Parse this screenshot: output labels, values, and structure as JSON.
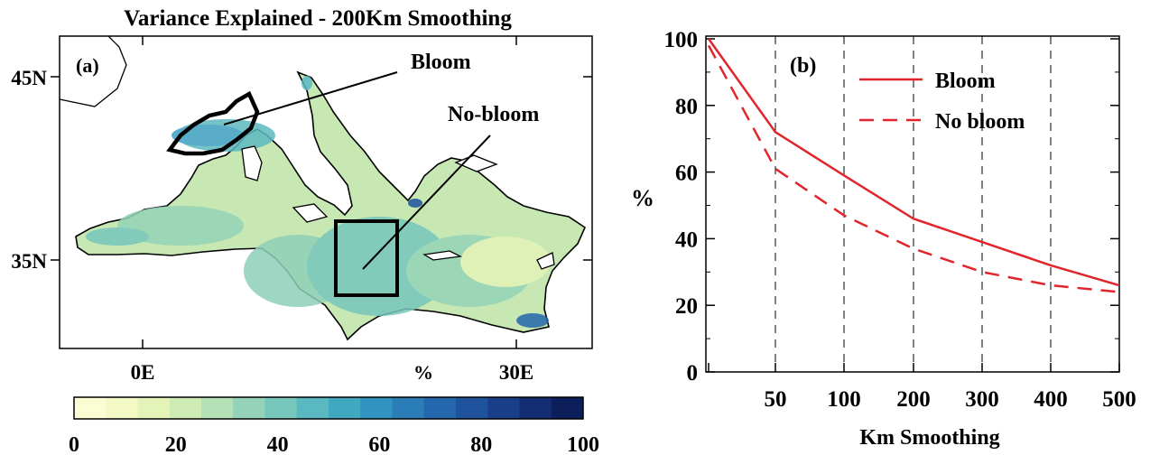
{
  "panel_a": {
    "title": "Variance Explained - 200Km Smoothing",
    "label": "(a)",
    "lat_ticks": [
      "45N",
      "35N"
    ],
    "lon_ticks": [
      "0E",
      "30E"
    ],
    "annotations": [
      "Bloom",
      "No-bloom"
    ],
    "colorbar": {
      "unit": "%",
      "ticks": [
        "0",
        "20",
        "40",
        "60",
        "80",
        "100"
      ],
      "range": [
        0,
        100
      ],
      "colors": [
        "#fbfdd4",
        "#f2f9c4",
        "#e4f3b7",
        "#cfebb4",
        "#b4e0b6",
        "#94d3b9",
        "#76c6bc",
        "#59b8c0",
        "#41a8c1",
        "#3193bf",
        "#2a7db7",
        "#2467ac",
        "#1f529c",
        "#1a3f8a",
        "#142d72",
        "#0d1f5a"
      ]
    }
  },
  "chart_data": {
    "type": "line",
    "label": "(b)",
    "xlabel": "Km Smoothing",
    "ylabel": "%",
    "x_categories": [
      "",
      "50",
      "100",
      "200",
      "300",
      "400",
      "500"
    ],
    "yticks": [
      0,
      20,
      40,
      60,
      80,
      100
    ],
    "ylim": [
      0,
      100
    ],
    "grid": "vertical dashed lines at x ticks",
    "legend_position": "top-right",
    "series": [
      {
        "name": "Bloom",
        "style": "solid",
        "color": "#e0262c",
        "values": [
          100,
          72,
          59,
          46,
          39,
          32,
          26
        ]
      },
      {
        "name": "No bloom",
        "style": "dashed",
        "color": "#e0262c",
        "values": [
          98,
          61,
          47,
          37,
          30,
          26,
          24
        ]
      }
    ]
  }
}
